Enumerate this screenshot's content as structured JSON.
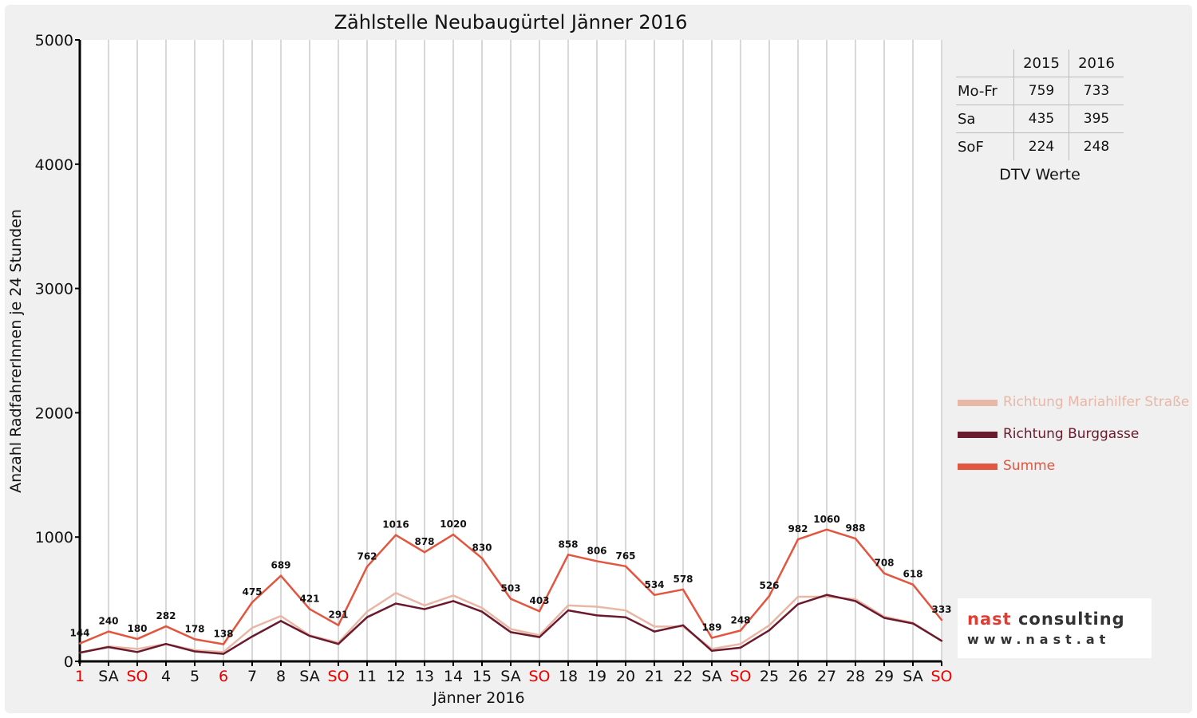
{
  "chart_data": {
    "type": "line",
    "title": "Zählstelle Neubaugürtel Jänner 2016",
    "xlabel": "Jänner 2016",
    "ylabel": "Anzahl RadfahrerInnen je 24 Stunden",
    "ylim": [
      0,
      5000
    ],
    "yticks": [
      "0",
      "1000",
      "2000",
      "3000",
      "4000",
      "5000"
    ],
    "grid": true,
    "legend_position": "right",
    "categories": [
      "1",
      "SA",
      "SO",
      "4",
      "5",
      "6",
      "7",
      "8",
      "SA",
      "SO",
      "11",
      "12",
      "13",
      "14",
      "15",
      "SA",
      "SO",
      "18",
      "19",
      "20",
      "21",
      "22",
      "SA",
      "SO",
      "25",
      "26",
      "27",
      "28",
      "29",
      "SA",
      "SO"
    ],
    "red_categories": [
      0,
      2,
      5,
      9,
      16,
      23,
      30
    ],
    "series": [
      {
        "name": "Richtung Mariahilfer Straße",
        "color": "#e8b7a6",
        "values": [
          70,
          120,
          100,
          140,
          90,
          75,
          270,
          365,
          210,
          150,
          400,
          550,
          450,
          530,
          430,
          260,
          210,
          450,
          440,
          410,
          280,
          280,
          100,
          140,
          290,
          520,
          520,
          500,
          360,
          310,
          165
        ]
      },
      {
        "name": "Richtung Burggasse",
        "color": "#6b1a2e",
        "values": [
          70,
          115,
          75,
          140,
          80,
          60,
          200,
          325,
          205,
          140,
          355,
          465,
          420,
          485,
          400,
          235,
          195,
          410,
          370,
          355,
          240,
          290,
          85,
          110,
          250,
          460,
          535,
          485,
          350,
          305,
          165
        ]
      },
      {
        "name": "Summe",
        "color": "#e2553f",
        "values": [
          144,
          240,
          180,
          282,
          178,
          138,
          475,
          689,
          421,
          291,
          762,
          1016,
          878,
          1020,
          830,
          503,
          403,
          858,
          806,
          765,
          534,
          578,
          189,
          248,
          526,
          982,
          1060,
          988,
          708,
          618,
          333
        ]
      }
    ],
    "data_labels": [
      "144",
      "240",
      "180",
      "282",
      "178",
      "138",
      "475",
      "689",
      "421",
      "291",
      "762",
      "1016",
      "878",
      "1020",
      "830",
      "503",
      "403",
      "858",
      "806",
      "765",
      "534",
      "578",
      "189",
      "248",
      "526",
      "982",
      "1060",
      "988",
      "708",
      "618",
      "333"
    ]
  },
  "dtv_table": {
    "col_headers": [
      "2015",
      "2016"
    ],
    "rows": [
      {
        "label": "Mo-Fr",
        "v2015": "759",
        "v2016": "733"
      },
      {
        "label": "Sa",
        "v2015": "435",
        "v2016": "395"
      },
      {
        "label": "SoF",
        "v2015": "224",
        "v2016": "248"
      }
    ],
    "caption": "DTV Werte"
  },
  "logo": {
    "line1a": "nast",
    "line1b": "consulting",
    "line2": "www.nast.at"
  }
}
